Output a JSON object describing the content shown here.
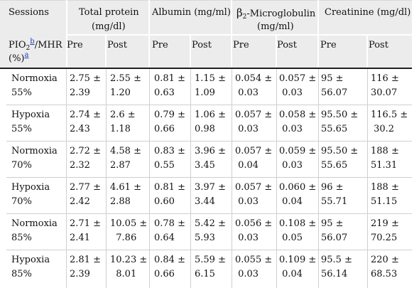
{
  "header": {
    "sessions": "Sessions",
    "total_protein_1": "Total protein",
    "total_protein_2": "(mg/dl)",
    "albumin": "Albumin (mg/ml)",
    "b2m_beta": "β",
    "b2m_sub": "2",
    "b2m_rest": "-Microglobulin",
    "b2m_unit": "(mg/ml)",
    "creatinine": "Creatinine (mg/dl)",
    "pio_a": "PIO",
    "pio_sub": "2",
    "pio_ref_b": "b",
    "pio_b": "/MHR",
    "pio_pct": "(%)",
    "pio_ref_a": "a",
    "pre": "Pre",
    "post": "Post"
  },
  "rows": [
    {
      "s1": "Normoxia",
      "s2": "55%",
      "tp_pre": [
        "2.75 ±",
        "2.39"
      ],
      "tp_post": [
        "2.55 ±",
        "1.20"
      ],
      "alb_pre": [
        "0.81 ±",
        "0.63"
      ],
      "alb_post": [
        "1.15 ±",
        "1.09"
      ],
      "b2_pre": [
        "0.054 ±",
        " 0.03"
      ],
      "b2_post": [
        "0.057 ±",
        " 0.03"
      ],
      "cr_pre": [
        "95 ±",
        "56.07"
      ],
      "cr_post": [
        "116 ±",
        "30.07"
      ]
    },
    {
      "s1": "Hypoxia",
      "s2": "55%",
      "tp_pre": [
        "2.74 ±",
        "2.43"
      ],
      "tp_post": [
        "2.6 ±",
        "1.18"
      ],
      "alb_pre": [
        "0.79 ±",
        "0.66"
      ],
      "alb_post": [
        "1.06 ±",
        "0.98"
      ],
      "b2_pre": [
        "0.057 ±",
        " 0.03"
      ],
      "b2_post": [
        "0.058 ±",
        " 0.03"
      ],
      "cr_pre": [
        "95.50 ±",
        "55.65"
      ],
      "cr_post": [
        "116.5 ±",
        " 30.2"
      ]
    },
    {
      "s1": "Normoxia",
      "s2": "70%",
      "tp_pre": [
        "2.72 ±",
        "2.32"
      ],
      "tp_post": [
        "4.58 ±",
        "2.87"
      ],
      "alb_pre": [
        "0.83 ±",
        "0.55"
      ],
      "alb_post": [
        "3.96 ±",
        "3.45"
      ],
      "b2_pre": [
        "0.057 ±",
        " 0.04"
      ],
      "b2_post": [
        "0.059 ±",
        " 0.03"
      ],
      "cr_pre": [
        "95.50 ±",
        "55.65"
      ],
      "cr_post": [
        "188 ±",
        "51.31"
      ]
    },
    {
      "s1": "Hypoxia",
      "s2": "70%",
      "tp_pre": [
        "2.77 ±",
        "2.42"
      ],
      "tp_post": [
        "4.61 ±",
        "2.88"
      ],
      "alb_pre": [
        "0.81 ±",
        "0.60"
      ],
      "alb_post": [
        "3.97 ±",
        "3.44"
      ],
      "b2_pre": [
        "0.057 ±",
        " 0.03"
      ],
      "b2_post": [
        "0.060 ±",
        " 0.04"
      ],
      "cr_pre": [
        "96 ±",
        "55.71"
      ],
      "cr_post": [
        "188 ±",
        "51.15"
      ]
    },
    {
      "s1": "Normoxia",
      "s2": "85%",
      "tp_pre": [
        "2.71 ±",
        "2.41"
      ],
      "tp_post": [
        "10.05 ±",
        "  7.86"
      ],
      "alb_pre": [
        "0.78 ±",
        "0.64"
      ],
      "alb_post": [
        "5.42 ±",
        "5.93"
      ],
      "b2_pre": [
        "0.056 ±",
        " 0.03"
      ],
      "b2_post": [
        "0.108 ±",
        " 0.05"
      ],
      "cr_pre": [
        "95 ±",
        "56.07"
      ],
      "cr_post": [
        "219 ±",
        "70.25"
      ]
    },
    {
      "s1": "Hypoxia",
      "s2": "85%",
      "tp_pre": [
        "2.81 ±",
        "2.39"
      ],
      "tp_post": [
        "10.23 ±",
        "  8.01"
      ],
      "alb_pre": [
        "0.84 ±",
        "0.66"
      ],
      "alb_post": [
        "5.59 ±",
        "6.15"
      ],
      "b2_pre": [
        "0.055 ±",
        " 0.03"
      ],
      "b2_post": [
        "0.109 ±",
        " 0.04"
      ],
      "cr_pre": [
        "95.5 ±",
        "56.14"
      ],
      "cr_post": [
        "220 ±",
        "68.53"
      ]
    }
  ]
}
